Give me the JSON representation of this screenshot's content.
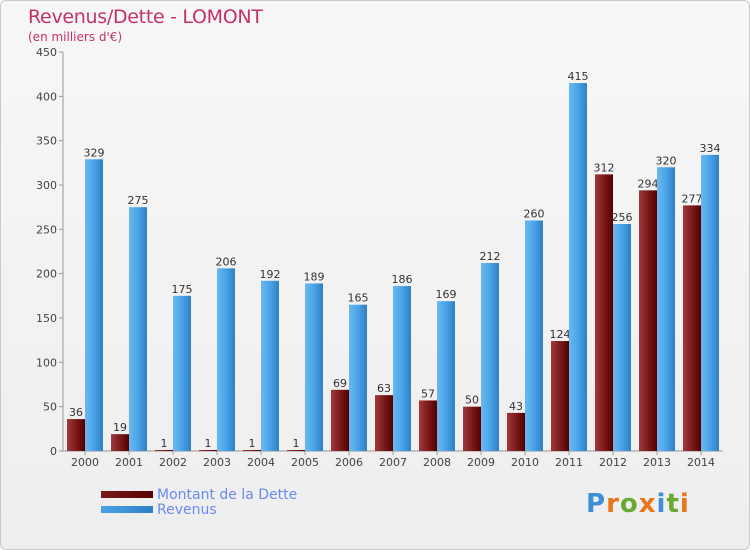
{
  "header": {
    "title": "Revenus/Dette - LOMONT",
    "subtitle": "(en milliers d'€)"
  },
  "colors": {
    "dette": "#7a1a1a",
    "revenus": "#4aa3e6",
    "title": "#c5306b",
    "legend_text": "#6b8af0"
  },
  "chart_data": {
    "type": "bar",
    "title": "Revenus/Dette - LOMONT",
    "ylabel": "(en milliers d'€)",
    "xlabel": "",
    "categories": [
      "2000",
      "2001",
      "2002",
      "2003",
      "2004",
      "2005",
      "2006",
      "2007",
      "2008",
      "2009",
      "2010",
      "2011",
      "2012",
      "2013",
      "2014"
    ],
    "series": [
      {
        "name": "Montant de la Dette",
        "values": [
          36,
          19,
          1,
          1,
          1,
          1,
          69,
          63,
          57,
          50,
          43,
          124,
          312,
          294,
          277
        ]
      },
      {
        "name": "Revenus",
        "values": [
          329,
          275,
          175,
          206,
          192,
          189,
          165,
          186,
          169,
          212,
          260,
          415,
          256,
          320,
          334
        ]
      }
    ],
    "ylim": [
      0,
      450
    ],
    "yticks": [
      0,
      50,
      100,
      150,
      200,
      250,
      300,
      350,
      400,
      450
    ],
    "grid": false,
    "legend": "bottom-left",
    "data_labels": true
  },
  "legend": {
    "items": [
      {
        "label": "Montant de la Dette",
        "color": "#7a1a1a"
      },
      {
        "label": "Revenus",
        "color": "#4aa3e6"
      }
    ]
  },
  "logo": {
    "text": "Proxiti",
    "letter_colors": [
      "#3d8fd6",
      "#e8761c",
      "#6aa834",
      "#e8761c",
      "#3d8fd6",
      "#6aa834",
      "#e8761c"
    ]
  }
}
